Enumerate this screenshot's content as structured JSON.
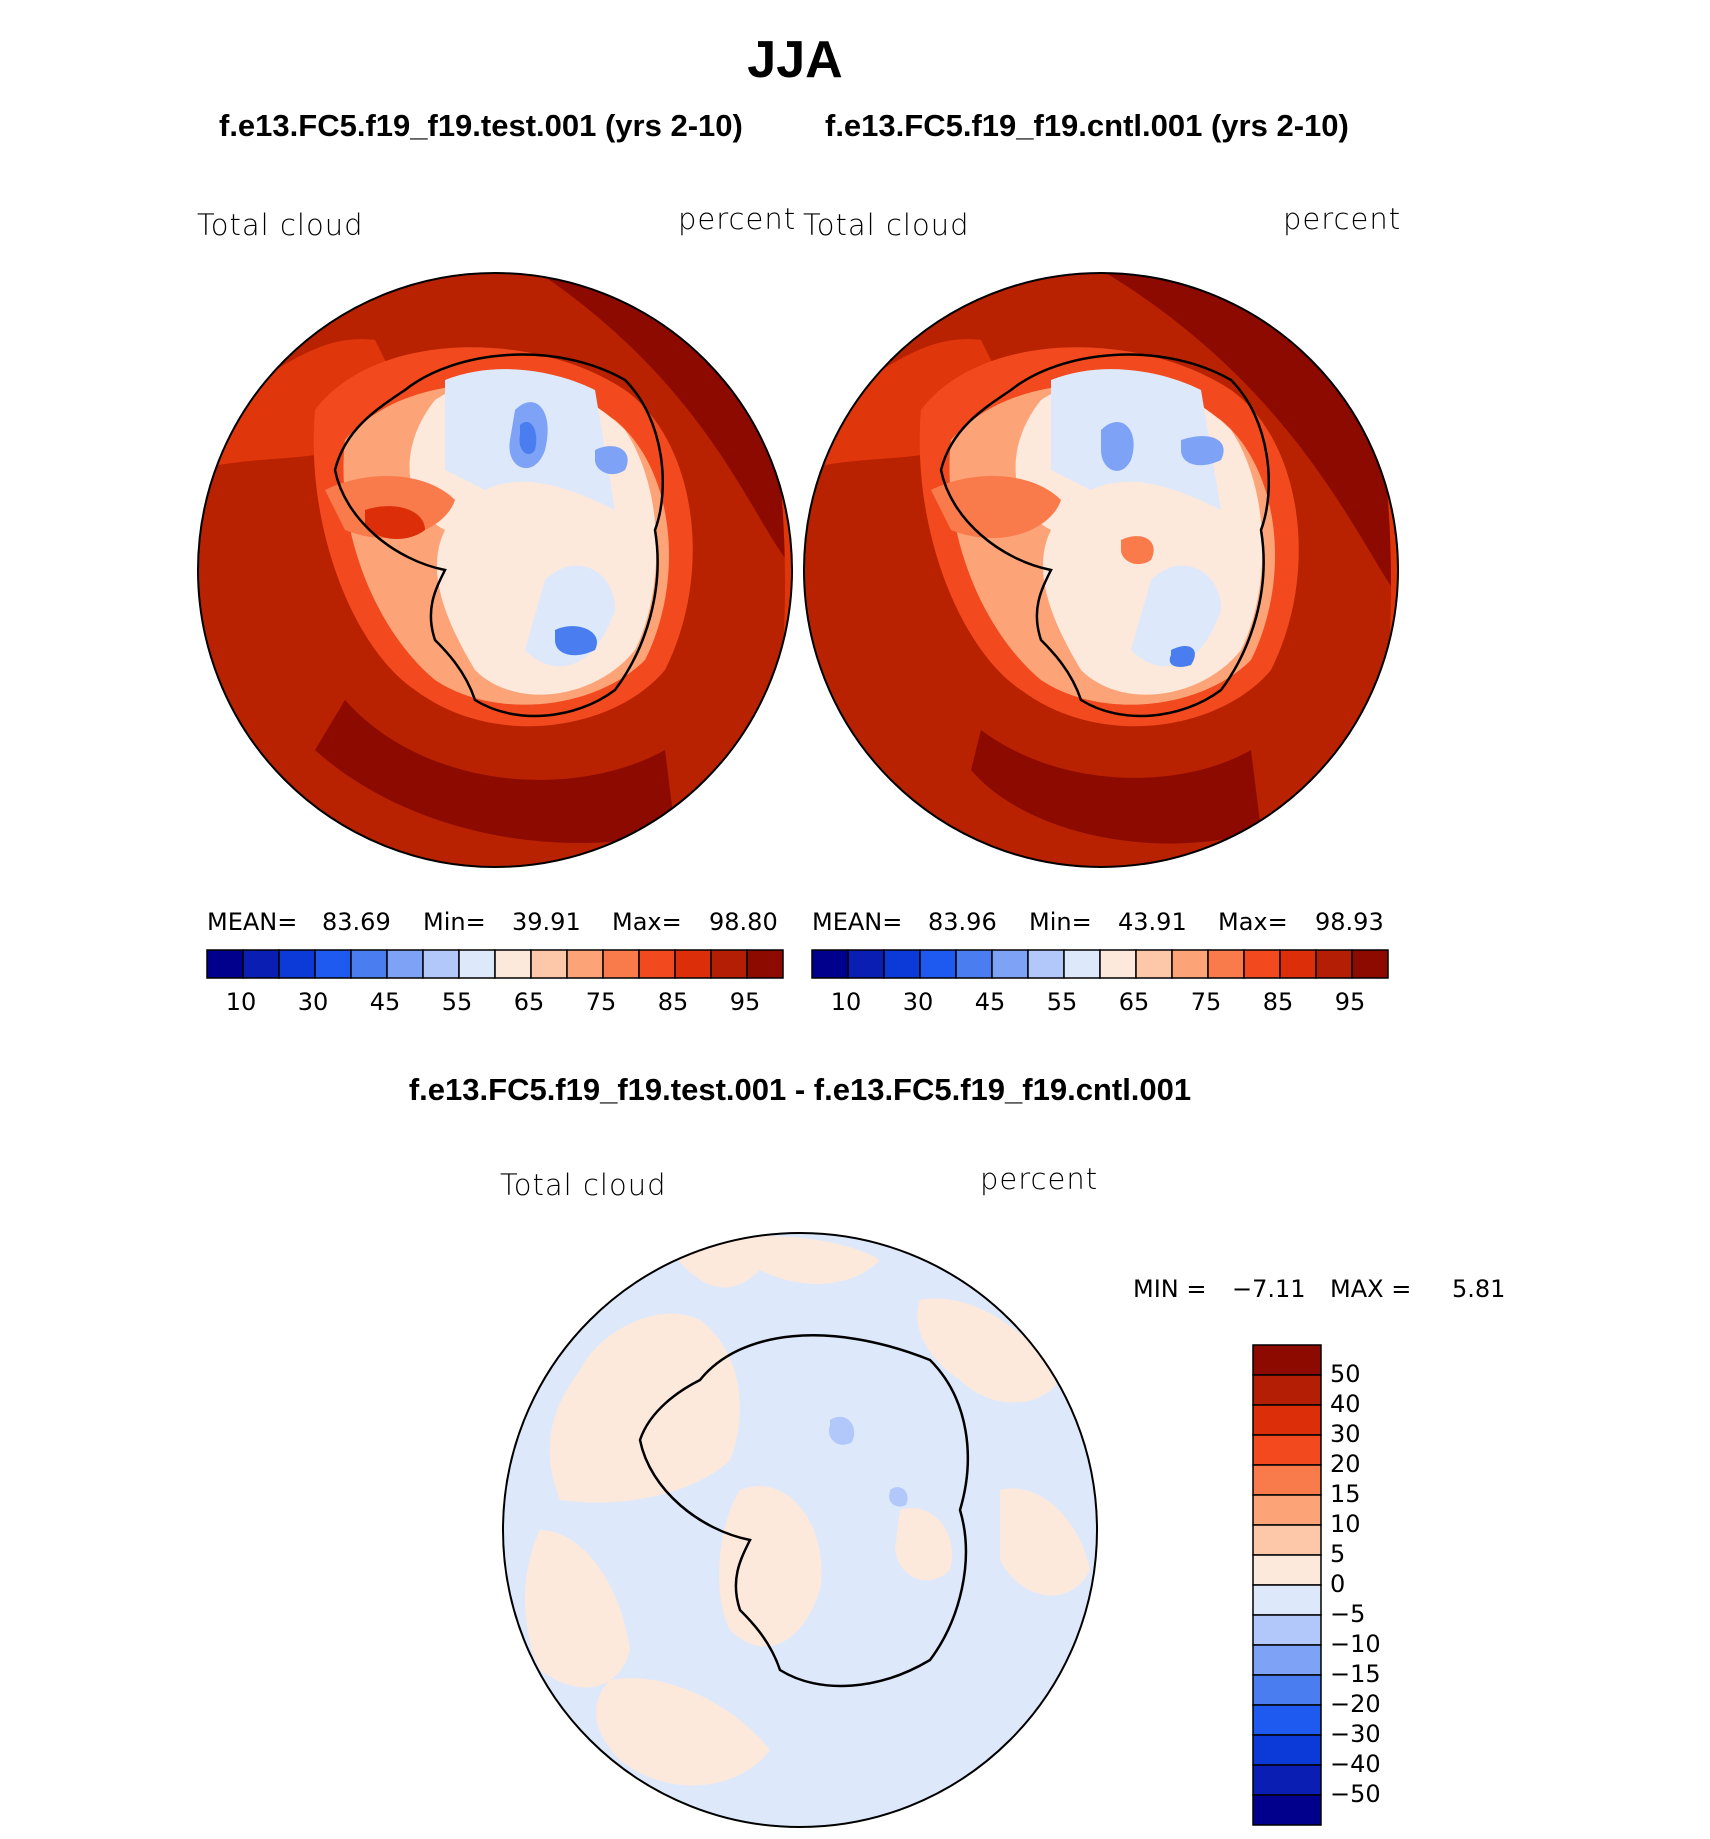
{
  "title": "JJA",
  "panels": [
    {
      "case_label": "f.e13.FC5.f19_f19.test.001 (yrs 2-10)",
      "variable": "Total cloud",
      "units": "percent",
      "stats": {
        "mean_label": "MEAN=",
        "mean": "83.69",
        "min_label": "Min=",
        "min": "39.91",
        "max_label": "Max=",
        "max": "98.80"
      },
      "dominant_color": "#b82200"
    },
    {
      "case_label": "f.e13.FC5.f19_f19.cntl.001 (yrs 2-10)",
      "variable": "Total cloud",
      "units": "percent",
      "stats": {
        "mean_label": "MEAN=",
        "mean": "83.96",
        "min_label": "Min=",
        "min": "43.91",
        "max_label": "Max=",
        "max": "98.93"
      },
      "dominant_color": "#b82200"
    }
  ],
  "colorbar_main": {
    "colors": [
      "#00008c",
      "#0a1eb4",
      "#0c3ad8",
      "#1e5af0",
      "#4a7ef0",
      "#7ea2f5",
      "#b2c8fa",
      "#dde9fb",
      "#fde8dc",
      "#fdc8aa",
      "#fca478",
      "#f97a4a",
      "#f24a1e",
      "#dc2e08",
      "#b41e05",
      "#8c0a00"
    ],
    "tick_labels": [
      "10",
      "30",
      "45",
      "55",
      "65",
      "75",
      "85",
      "95"
    ]
  },
  "diff": {
    "title": "f.e13.FC5.f19_f19.test.001 - f.e13.FC5.f19_f19.cntl.001",
    "variable": "Total cloud",
    "units": "percent",
    "min_label": "MIN =",
    "min": "−7.11",
    "max_label": "MAX =",
    "max": "5.81",
    "colorbar": {
      "colors_top_to_bottom": [
        "#8c0a00",
        "#b41e05",
        "#dc2e08",
        "#f24a1e",
        "#f97a4a",
        "#fca478",
        "#fdc8aa",
        "#fde8dc",
        "#dde9fb",
        "#b2c8fa",
        "#7ea2f5",
        "#4a7ef0",
        "#1e5af0",
        "#0c3ad8",
        "#0a1eb4",
        "#00008c"
      ],
      "tick_labels": [
        "50",
        "40",
        "30",
        "20",
        "15",
        "10",
        "5",
        "0",
        "−5",
        "−10",
        "−15",
        "−20",
        "−30",
        "−40",
        "−50"
      ]
    }
  }
}
